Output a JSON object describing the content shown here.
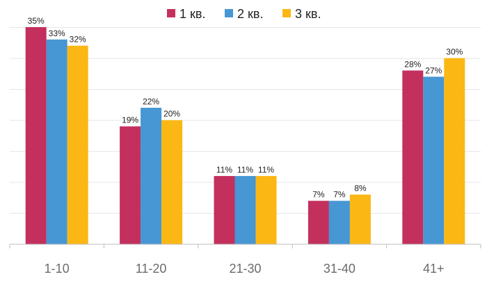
{
  "chart_data": {
    "type": "bar",
    "title": "",
    "xlabel": "",
    "ylabel": "",
    "categories": [
      "1-10",
      "11-20",
      "21-30",
      "31-40",
      "41+"
    ],
    "series": [
      {
        "name": "1 кв.",
        "color": "#c3305e",
        "values": [
          35,
          19,
          11,
          7,
          28
        ],
        "labels": [
          "35%",
          "19%",
          "11%",
          "7%",
          "28%"
        ]
      },
      {
        "name": "2 кв.",
        "color": "#4697d4",
        "values": [
          33,
          22,
          11,
          7,
          27
        ],
        "labels": [
          "33%",
          "22%",
          "11%",
          "7%",
          "27%"
        ]
      },
      {
        "name": "3 кв.",
        "color": "#fbb714",
        "values": [
          32,
          20,
          11,
          8,
          30
        ],
        "labels": [
          "32%",
          "20%",
          "11%",
          "8%",
          "30%"
        ]
      }
    ],
    "ylim": [
      0,
      36
    ],
    "grid": true,
    "legend": "top-center"
  }
}
